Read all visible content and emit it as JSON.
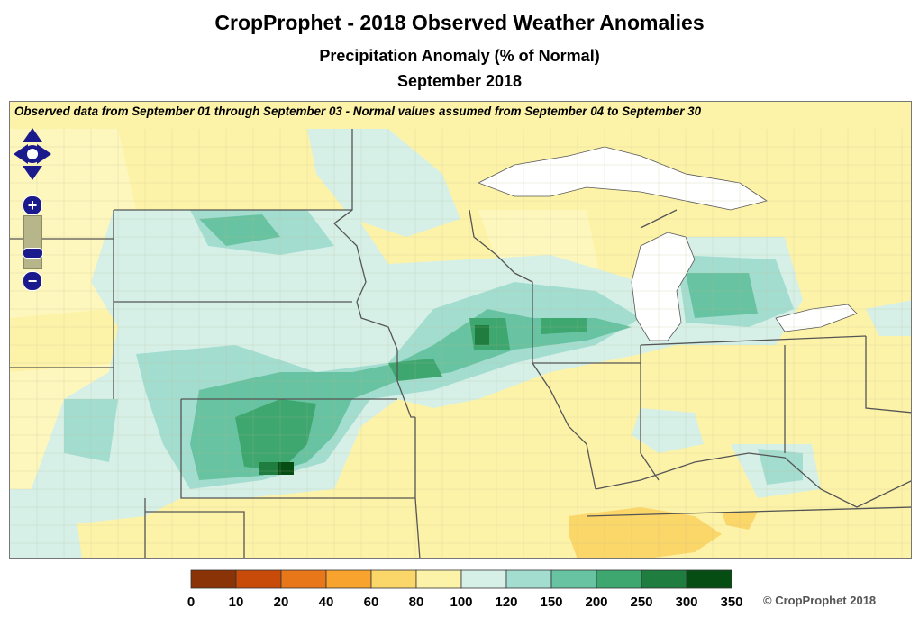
{
  "header": {
    "title": "CropProphet - 2018 Observed Weather Anomalies",
    "subtitle": "Precipitation Anomaly (% of Normal)",
    "period": "September 2018"
  },
  "map": {
    "note": "Observed data from September 01 through September 03 - Normal values assumed from September 04 to September 30",
    "controls": {
      "zoom_in": "+",
      "zoom_out": "−"
    }
  },
  "legend": {
    "ticks": [
      "0",
      "10",
      "20",
      "40",
      "60",
      "80",
      "100",
      "120",
      "150",
      "200",
      "250",
      "300",
      "350"
    ],
    "colors": [
      "#8a3306",
      "#c84b0a",
      "#e8771a",
      "#f7a32e",
      "#fbd669",
      "#fdf3a8",
      "#d6f0e8",
      "#a3ddd0",
      "#67c3a1",
      "#3ea66f",
      "#1e7d3f",
      "#064d14"
    ]
  },
  "copyright": "© CropProphet 2018"
}
